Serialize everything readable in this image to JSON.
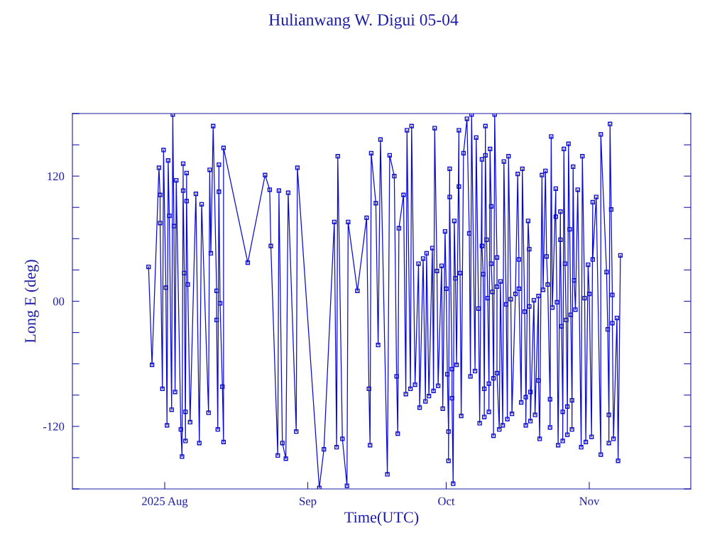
{
  "chart_data": {
    "type": "line",
    "title": "Hulianwang W. Digui 05-04",
    "xlabel": "Time(UTC)",
    "ylabel": "Long E (deg)",
    "xlim": [
      "2025-07-12",
      "2025-11-23"
    ],
    "xticks": [
      {
        "value": "2025-08-01",
        "label": "2025 Aug"
      },
      {
        "value": "2025-09-01",
        "label": "Sep"
      },
      {
        "value": "2025-10-01",
        "label": "Oct"
      },
      {
        "value": "2025-11-01",
        "label": "Nov"
      }
    ],
    "ylim": [
      -180,
      180
    ],
    "yticks": [
      {
        "value": -180,
        "label": null
      },
      {
        "value": -150,
        "label": null
      },
      {
        "value": -120,
        "label": "-120"
      },
      {
        "value": -90,
        "label": null
      },
      {
        "value": -60,
        "label": null
      },
      {
        "value": -30,
        "label": null
      },
      {
        "value": 0,
        "label": "00"
      },
      {
        "value": 30,
        "label": null
      },
      {
        "value": 60,
        "label": null
      },
      {
        "value": 90,
        "label": null
      },
      {
        "value": 120,
        "label": "120"
      },
      {
        "value": 150,
        "label": null
      },
      {
        "value": 180,
        "label": null
      }
    ],
    "marker": "square",
    "line_style": "solid",
    "grid": false,
    "series": [
      {
        "color": "#0a0ad0",
        "x": [
          "2025-07-28T12:00",
          "2025-07-29T06:00",
          "2025-07-30T18:00",
          "2025-07-31T00:00",
          "2025-07-31T00:00",
          "2025-07-31T12:00",
          "2025-07-31T18:00",
          "2025-08-01T06:00",
          "2025-08-01T12:00",
          "2025-08-01T18:00",
          "2025-08-02T00:00",
          "2025-08-02T12:00",
          "2025-08-02T18:00",
          "2025-08-03T00:00",
          "2025-08-03T06:00",
          "2025-08-03T12:00",
          "2025-08-04T12:00",
          "2025-08-04T18:00",
          "2025-08-05T00:00",
          "2025-08-05T00:00",
          "2025-08-05T06:00",
          "2025-08-05T12:00",
          "2025-08-05T12:00",
          "2025-08-05T18:00",
          "2025-08-05T18:00",
          "2025-08-06T00:00",
          "2025-08-06T12:00",
          "2025-08-07T18:00",
          "2025-08-08T12:00",
          "2025-08-09T00:00",
          "2025-08-10T12:00",
          "2025-08-10T18:00",
          "2025-08-11T00:00",
          "2025-08-11T12:00",
          "2025-08-12T06:00",
          "2025-08-12T06:00",
          "2025-08-12T12:00",
          "2025-08-12T18:00",
          "2025-08-12T18:00",
          "2025-08-13T00:00",
          "2025-08-13T12:00",
          "2025-08-13T18:00",
          "2025-08-13T18:00",
          "2025-08-19T00:00",
          "2025-08-22T18:00",
          "2025-08-23T18:00",
          "2025-08-24T00:00",
          "2025-08-25T12:00",
          "2025-08-25T18:00",
          "2025-08-26T12:00",
          "2025-08-27T06:00",
          "2025-08-27T18:00",
          "2025-08-29T12:00",
          "2025-08-29T18:00",
          "2025-09-03T12:00",
          "2025-09-04T12:00",
          "2025-09-06T18:00",
          "2025-09-07T06:00",
          "2025-09-07T12:00",
          "2025-09-08T12:00",
          "2025-09-09T12:00",
          "2025-09-09T18:00",
          "2025-09-11T18:00",
          "2025-09-13T18:00",
          "2025-09-14T06:00",
          "2025-09-14T12:00",
          "2025-09-14T18:00",
          "2025-09-15T18:00",
          "2025-09-16T06:00",
          "2025-09-16T18:00",
          "2025-09-18T06:00",
          "2025-09-18T18:00",
          "2025-09-19T18:00",
          "2025-09-20T06:00",
          "2025-09-20T12:00",
          "2025-09-20T18:00",
          "2025-09-21T18:00",
          "2025-09-22T06:00",
          "2025-09-22T12:00",
          "2025-09-23T06:00",
          "2025-09-23T12:00",
          "2025-09-24T06:00",
          "2025-09-25T00:00",
          "2025-09-25T06:00",
          "2025-09-26T00:00",
          "2025-09-26T12:00",
          "2025-09-26T18:00",
          "2025-09-27T06:00",
          "2025-09-28T00:00",
          "2025-09-28T06:00",
          "2025-09-28T12:00",
          "2025-09-29T00:00",
          "2025-09-29T06:00",
          "2025-09-30T00:00",
          "2025-09-30T06:00",
          "2025-09-30T18:00",
          "2025-10-01T00:00",
          "2025-10-01T06:00",
          "2025-10-01T12:00",
          "2025-10-01T12:00",
          "2025-10-01T18:00",
          "2025-10-01T18:00",
          "2025-10-02T06:00",
          "2025-10-02T06:00",
          "2025-10-02T12:00",
          "2025-10-02T18:00",
          "2025-10-03T00:00",
          "2025-10-03T06:00",
          "2025-10-03T18:00",
          "2025-10-03T18:00",
          "2025-10-04T00:00",
          "2025-10-04T06:00",
          "2025-10-04T18:00",
          "2025-10-05T12:00",
          "2025-10-06T00:00",
          "2025-10-06T06:00",
          "2025-10-06T12:00",
          "2025-10-07T06:00",
          "2025-10-07T12:00",
          "2025-10-08T00:00",
          "2025-10-08T06:00",
          "2025-10-08T18:00",
          "2025-10-08T18:00",
          "2025-10-09T00:00",
          "2025-10-09T06:00",
          "2025-10-09T06:00",
          "2025-10-09T12:00",
          "2025-10-09T12:00",
          "2025-10-09T18:00",
          "2025-10-10T00:00",
          "2025-10-10T06:00",
          "2025-10-10T06:00",
          "2025-10-10T12:00",
          "2025-10-10T18:00",
          "2025-10-10T18:00",
          "2025-10-11T00:00",
          "2025-10-11T06:00",
          "2025-10-11T06:00",
          "2025-10-11T12:00",
          "2025-10-12T00:00",
          "2025-10-12T00:00",
          "2025-10-12T00:00",
          "2025-10-12T12:00",
          "2025-10-12T18:00",
          "2025-10-13T06:00",
          "2025-10-13T12:00",
          "2025-10-14T00:00",
          "2025-10-14T06:00",
          "2025-10-14T12:00",
          "2025-10-15T00:00",
          "2025-10-15T06:00",
          "2025-10-16T00:00",
          "2025-10-16T12:00",
          "2025-10-16T18:00",
          "2025-10-16T18:00",
          "2025-10-17T06:00",
          "2025-10-17T12:00",
          "2025-10-18T00:00",
          "2025-10-18T06:00",
          "2025-10-18T06:00",
          "2025-10-18T18:00",
          "2025-10-19T00:00",
          "2025-10-19T00:00",
          "2025-10-19T06:00",
          "2025-10-19T06:00",
          "2025-10-20T00:00",
          "2025-10-20T06:00",
          "2025-10-21T00:00",
          "2025-10-21T00:00",
          "2025-10-21T06:00",
          "2025-10-21T18:00",
          "2025-10-22T00:00",
          "2025-10-22T12:00",
          "2025-10-22T18:00",
          "2025-10-23T00:00",
          "2025-10-23T12:00",
          "2025-10-23T12:00",
          "2025-10-23T18:00",
          "2025-10-24T00:00",
          "2025-10-24T18:00",
          "2025-10-24T18:00",
          "2025-10-25T00:00",
          "2025-10-25T06:00",
          "2025-10-25T18:00",
          "2025-10-25T18:00",
          "2025-10-26T00:00",
          "2025-10-26T06:00",
          "2025-10-26T06:00",
          "2025-10-26T12:00",
          "2025-10-26T18:00",
          "2025-10-27T00:00",
          "2025-10-27T06:00",
          "2025-10-27T06:00",
          "2025-10-27T12:00",
          "2025-10-27T18:00",
          "2025-10-28T00:00",
          "2025-10-28T06:00",
          "2025-10-28T06:00",
          "2025-10-28T12:00",
          "2025-10-28T18:00",
          "2025-10-29T00:00",
          "2025-10-29T12:00",
          "2025-10-30T06:00",
          "2025-10-30T12:00",
          "2025-10-31T00:00",
          "2025-10-31T06:00",
          "2025-10-31T18:00",
          "2025-11-01T00:00",
          "2025-11-01T12:00",
          "2025-11-01T18:00",
          "2025-11-01T18:00",
          "2025-11-02T12:00",
          "2025-11-03T12:00",
          "2025-11-03T12:00",
          "2025-11-04T18:00",
          "2025-11-05T00:00",
          "2025-11-05T06:00",
          "2025-11-05T06:00",
          "2025-11-05T12:00",
          "2025-11-05T18:00",
          "2025-11-06T00:00",
          "2025-11-06T00:00",
          "2025-11-06T06:00",
          "2025-11-07T00:00",
          "2025-11-07T06:00",
          "2025-11-07T18:00"
        ],
        "values": [
          33,
          -61,
          128,
          102,
          75,
          -84,
          145,
          13,
          -119,
          135,
          82,
          -104,
          179,
          72,
          -87,
          116,
          -123,
          -149,
          132,
          106,
          27,
          -134,
          -106,
          123,
          96,
          16,
          -116,
          103,
          -136,
          93,
          -107,
          126,
          46,
          168,
          10,
          -18,
          -123,
          131,
          105,
          -2,
          -82,
          -135,
          147,
          37,
          121,
          107,
          53,
          -148,
          106,
          -136,
          -151,
          104,
          -125,
          128,
          -179,
          -142,
          76,
          -140,
          139,
          -132,
          -177,
          76,
          10,
          80,
          -84,
          -138,
          142,
          94,
          -42,
          155,
          -166,
          140,
          120,
          -72,
          -127,
          70,
          102,
          -89,
          164,
          -84,
          168,
          -80,
          36,
          -102,
          41,
          -96,
          46,
          -91,
          51,
          -86,
          166,
          29,
          -81,
          34,
          -103,
          67,
          12,
          -70,
          -125,
          -153,
          127,
          100,
          -65,
          -93,
          -175,
          77,
          22,
          -61,
          164,
          110,
          27,
          -110,
          142,
          175,
          65,
          -72,
          179,
          -67,
          157,
          -7,
          -117,
          136,
          53,
          26,
          -84,
          -111,
          168,
          140,
          59,
          3,
          -79,
          -106,
          146,
          91,
          36,
          9,
          -74,
          -129,
          179,
          42,
          14,
          -69,
          -123,
          19,
          -119,
          134,
          -3,
          -113,
          139,
          2,
          -108,
          7,
          122,
          40,
          12,
          -97,
          127,
          -10,
          -92,
          -119,
          77,
          50,
          -5,
          -87,
          -115,
          1,
          -109,
          5,
          -76,
          -132,
          121,
          11,
          125,
          43,
          16,
          -94,
          -121,
          158,
          -6,
          108,
          81,
          -1,
          -138,
          86,
          59,
          -24,
          -106,
          -134,
          146,
          36,
          -18,
          -101,
          -128,
          151,
          69,
          -13,
          -95,
          -123,
          129,
          20,
          -8,
          107,
          -140,
          139,
          3,
          -135,
          35,
          7,
          -130,
          95,
          40,
          100,
          -147,
          160,
          28,
          -27,
          -109,
          -136,
          170,
          88,
          6,
          -21,
          -132,
          -16,
          -153,
          44
        ]
      }
    ]
  }
}
